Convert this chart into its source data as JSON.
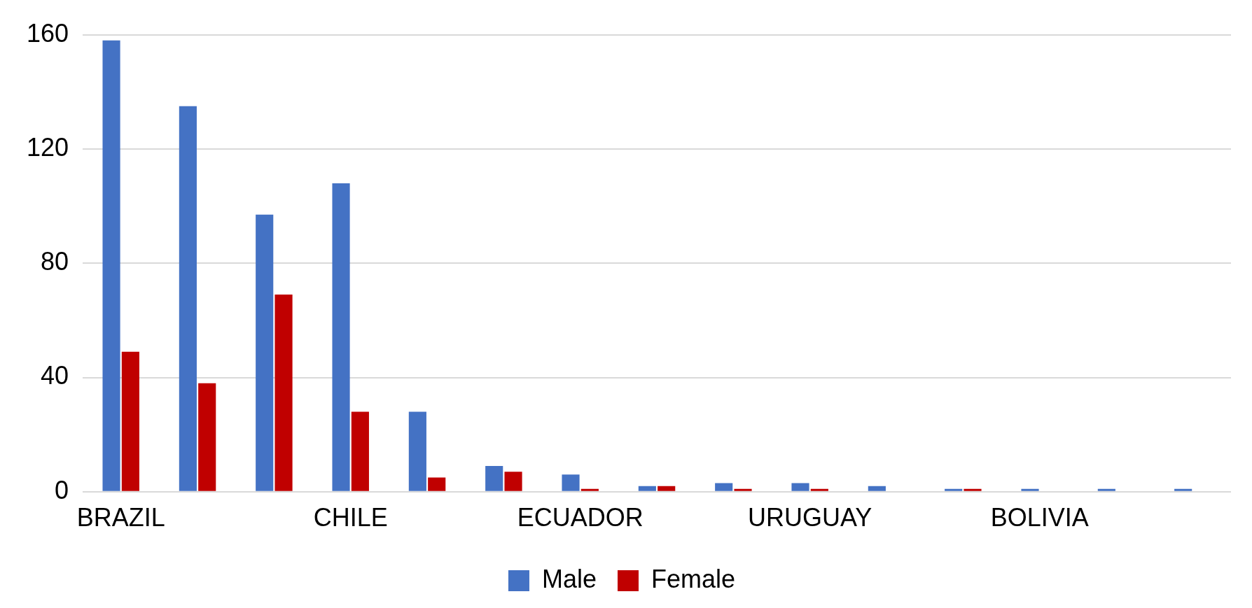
{
  "chart_data": {
    "type": "bar",
    "categories": [
      "BRAZIL",
      null,
      null,
      "CHILE",
      null,
      null,
      "ECUADOR",
      null,
      null,
      "URUGUAY",
      null,
      null,
      "BOLIVIA",
      null,
      null
    ],
    "series": [
      {
        "name": "Male",
        "color": "#4472c4",
        "values": [
          158,
          135,
          97,
          108,
          28,
          9,
          6,
          2,
          3,
          3,
          2,
          1,
          1,
          1,
          1
        ]
      },
      {
        "name": "Female",
        "color": "#c00000",
        "values": [
          49,
          38,
          69,
          28,
          5,
          7,
          1,
          2,
          1,
          1,
          0,
          1,
          0,
          0,
          0
        ]
      }
    ],
    "ylim": [
      0,
      160
    ],
    "yticks": [
      0,
      40,
      80,
      120,
      160
    ],
    "grid": "y",
    "legend": "bottom"
  }
}
